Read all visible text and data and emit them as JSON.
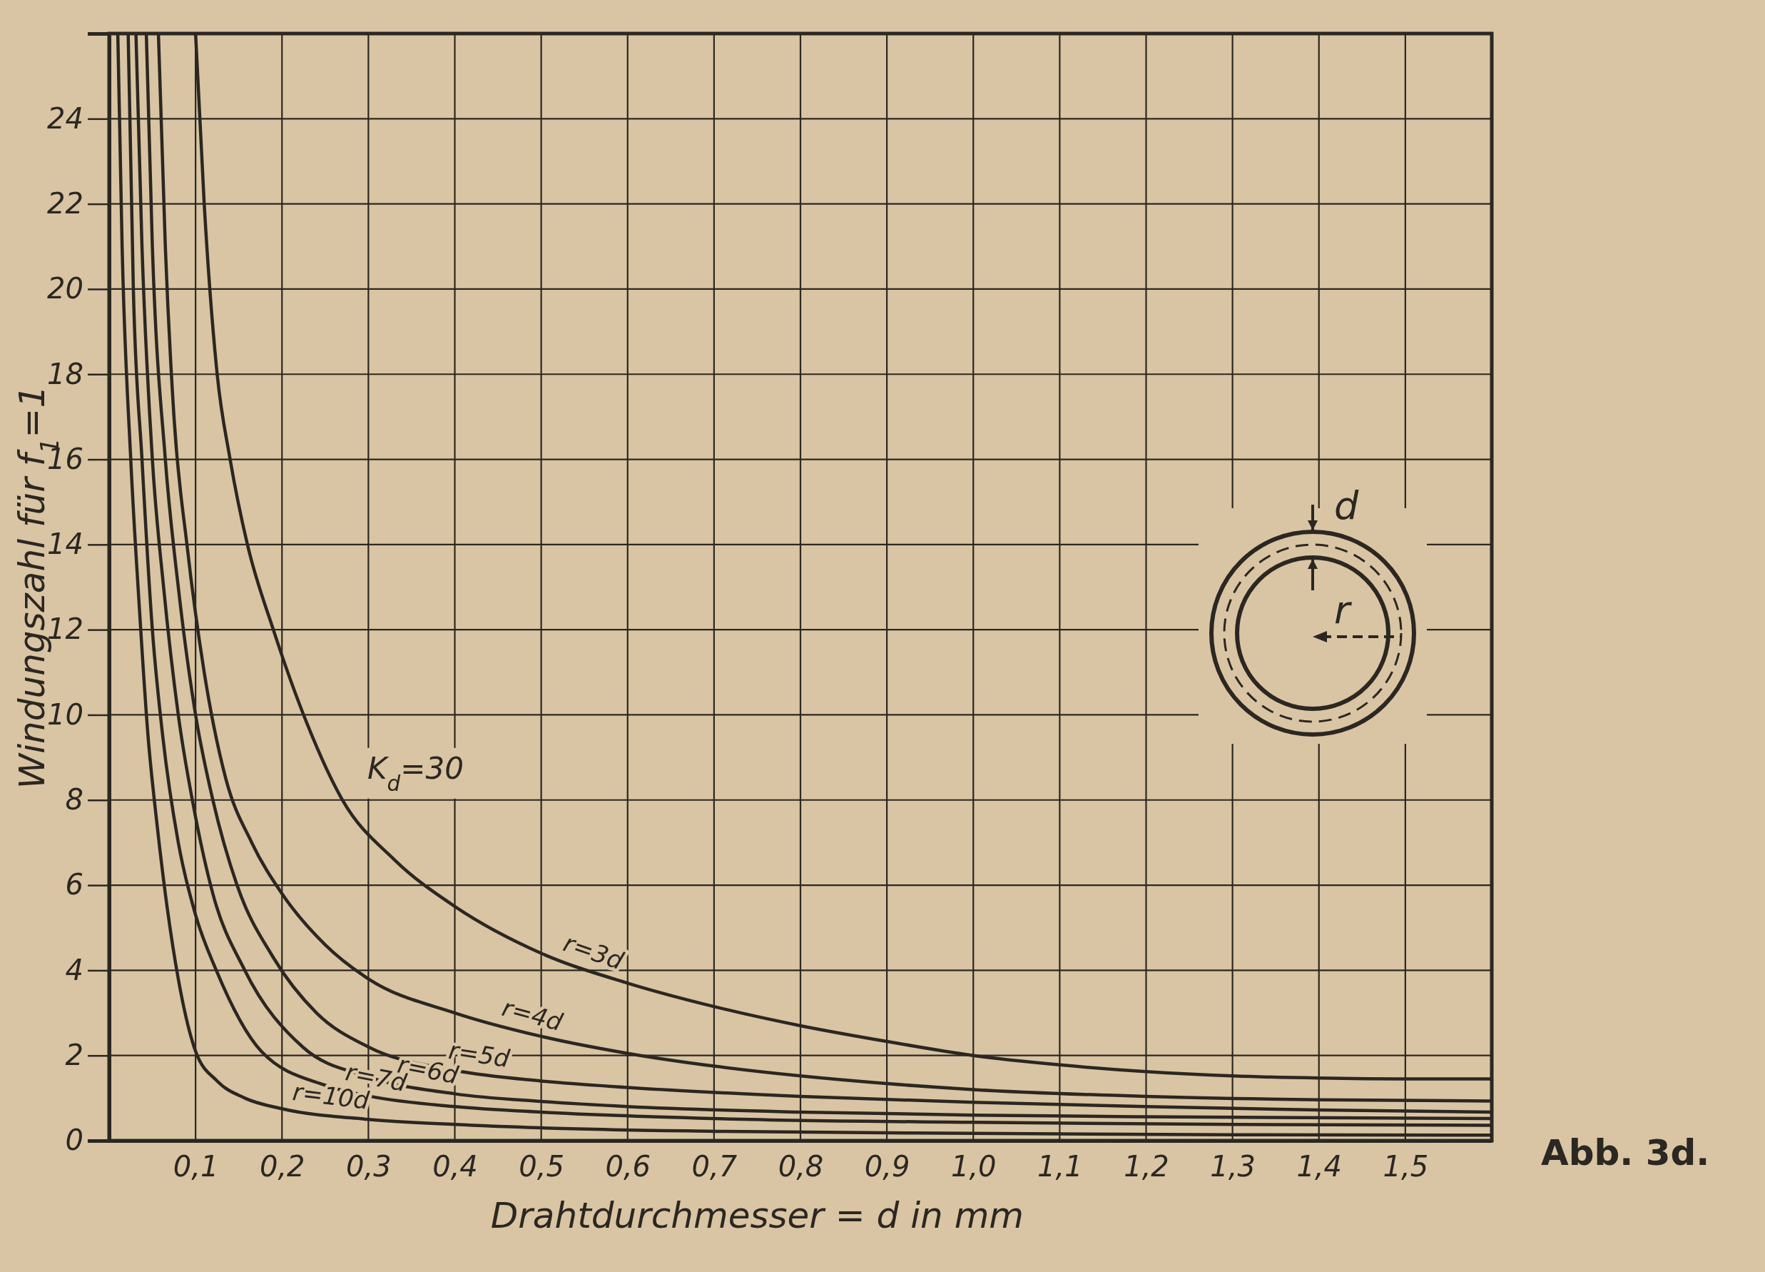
{
  "chart_data": {
    "type": "line",
    "xlabel": "Drahtdurchmesser = d in mm",
    "ylabel": "Windungszahl für f$_{1}$=1",
    "xlim": [
      0,
      1.6
    ],
    "ylim": [
      0,
      26
    ],
    "xticks": [
      {
        "value": 0.1,
        "label": "0,1"
      },
      {
        "value": 0.2,
        "label": "0,2"
      },
      {
        "value": 0.3,
        "label": "0,3"
      },
      {
        "value": 0.4,
        "label": "0,4"
      },
      {
        "value": 0.5,
        "label": "0,5"
      },
      {
        "value": 0.6,
        "label": "0,6"
      },
      {
        "value": 0.7,
        "label": "0,7"
      },
      {
        "value": 0.8,
        "label": "0,8"
      },
      {
        "value": 0.9,
        "label": "0,9"
      },
      {
        "value": 1.0,
        "label": "1,0"
      },
      {
        "value": 1.1,
        "label": "1,1"
      },
      {
        "value": 1.2,
        "label": "1,2"
      },
      {
        "value": 1.3,
        "label": "1,3"
      },
      {
        "value": 1.4,
        "label": "1,4"
      },
      {
        "value": 1.5,
        "label": "1,5"
      }
    ],
    "yticks": [
      0,
      2,
      4,
      6,
      8,
      10,
      12,
      14,
      16,
      18,
      20,
      22,
      24
    ],
    "grid": true,
    "series": [
      {
        "name": "r=3d",
        "color": "#2b2722",
        "x": [
          0.1,
          0.11,
          0.125,
          0.14,
          0.16,
          0.19,
          0.225,
          0.27,
          0.33,
          0.4,
          0.5,
          0.6,
          0.7,
          0.8,
          0.9,
          1.0,
          1.1,
          1.2,
          1.3,
          1.4,
          1.5,
          1.6
        ],
        "values": [
          26,
          22,
          18,
          16,
          14,
          12,
          10,
          8,
          6.6,
          5.5,
          4.4,
          3.7,
          3.15,
          2.7,
          2.33,
          2.0,
          1.78,
          1.62,
          1.52,
          1.47,
          1.45,
          1.45
        ]
      },
      {
        "name": "r=4d",
        "color": "#2b2722",
        "x": [
          0.057,
          0.065,
          0.075,
          0.09,
          0.11,
          0.135,
          0.165,
          0.2,
          0.25,
          0.3,
          0.4,
          0.5,
          0.6,
          0.7,
          0.8,
          0.9,
          1.0,
          1.2,
          1.4,
          1.6
        ],
        "values": [
          26,
          21,
          17,
          14,
          11,
          8.5,
          7,
          5.8,
          4.6,
          3.8,
          3.0,
          2.45,
          2.05,
          1.75,
          1.52,
          1.34,
          1.2,
          1.04,
          0.96,
          0.93
        ]
      },
      {
        "name": "r=5d",
        "color": "#2b2722",
        "x": [
          0.043,
          0.05,
          0.065,
          0.08,
          0.1,
          0.12,
          0.148,
          0.19,
          0.24,
          0.3,
          0.4,
          0.5,
          0.6,
          0.8,
          1.0,
          1.2,
          1.4,
          1.6
        ],
        "values": [
          26,
          21,
          16,
          13,
          10,
          8,
          6,
          4.3,
          3.0,
          2.2,
          1.65,
          1.4,
          1.25,
          1.04,
          0.9,
          0.8,
          0.72,
          0.67
        ]
      },
      {
        "name": "r=6d",
        "color": "#2b2722",
        "x": [
          0.031,
          0.038,
          0.05,
          0.063,
          0.08,
          0.1,
          0.12,
          0.157,
          0.224,
          0.3,
          0.4,
          0.5,
          0.6,
          0.8,
          1.0,
          1.2,
          1.6
        ],
        "values": [
          26,
          21,
          16,
          13,
          10,
          7.6,
          5.8,
          4,
          2.2,
          1.5,
          1.1,
          0.92,
          0.8,
          0.67,
          0.6,
          0.56,
          0.52
        ]
      },
      {
        "name": "r=7d",
        "color": "#2b2722",
        "x": [
          0.022,
          0.028,
          0.038,
          0.05,
          0.062,
          0.08,
          0.1,
          0.124,
          0.176,
          0.25,
          0.3,
          0.4,
          0.5,
          0.7,
          1.0,
          1.3,
          1.6
        ],
        "values": [
          26,
          20,
          16,
          12,
          9.5,
          7,
          5.3,
          4,
          2.1,
          1.3,
          1.05,
          0.8,
          0.67,
          0.52,
          0.43,
          0.38,
          0.36
        ]
      },
      {
        "name": "r=10d",
        "color": "#2b2722",
        "x": [
          0.01,
          0.015,
          0.025,
          0.035,
          0.045,
          0.055,
          0.065,
          0.08,
          0.1,
          0.125,
          0.157,
          0.2,
          0.3,
          0.4,
          0.5,
          0.7,
          1.0,
          1.3,
          1.6
        ],
        "values": [
          26,
          21,
          16,
          12.5,
          9.5,
          7.5,
          5.8,
          3.8,
          2.1,
          1.4,
          1.0,
          0.75,
          0.5,
          0.38,
          0.3,
          0.22,
          0.17,
          0.14,
          0.13
        ]
      }
    ],
    "annotations": [
      {
        "text": "K$_{d}$=30",
        "x": 0.27,
        "y": 8
      },
      "d",
      "r",
      "Abb. 3d."
    ]
  }
}
